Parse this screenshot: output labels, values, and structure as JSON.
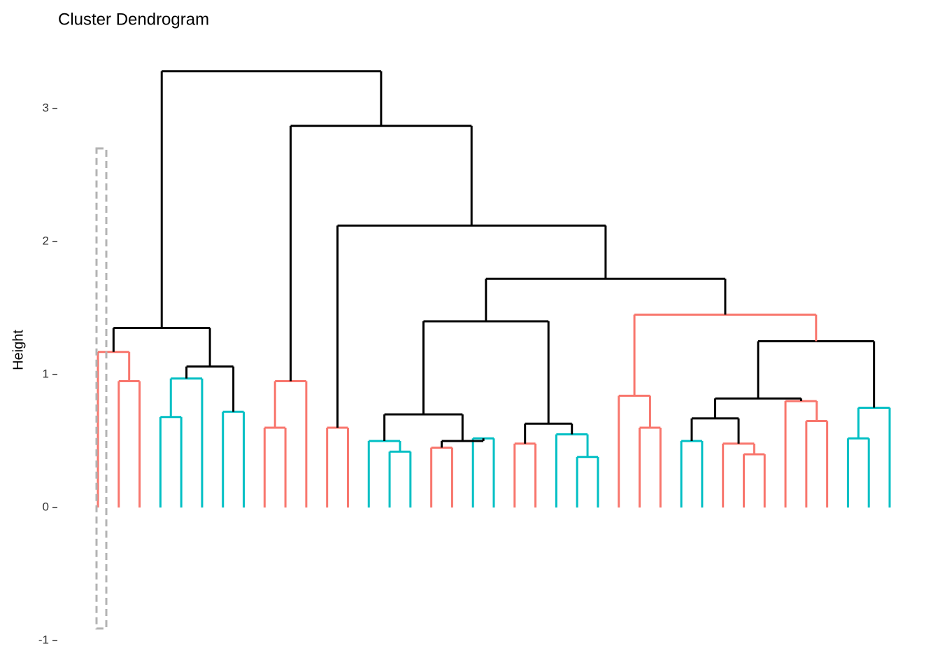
{
  "chart_data": {
    "type": "dendrogram",
    "title": "Cluster Dendrogram",
    "y_label": "Height",
    "ylim": [
      -1,
      3.3
    ],
    "yticks": [
      -1,
      0,
      1,
      2,
      3
    ],
    "rect": {
      "ymin": -0.91,
      "ymax": 2.7,
      "color": "#b3b3b3"
    },
    "tree": {
      "height": 3.28,
      "color": "#000000",
      "children": [
        {
          "height": 1.35,
          "color": "#000000",
          "children": [
            {
              "height": 1.17,
              "color": "#F8766D",
              "children": [
                {
                  "height": 0
                },
                {
                  "height": 0.95,
                  "color": "#F8766D",
                  "children": [
                    {
                      "height": 0
                    },
                    {
                      "height": 0
                    }
                  ]
                }
              ]
            },
            {
              "height": 1.06,
              "color": "#000000",
              "children": [
                {
                  "height": 0.97,
                  "color": "#00BFC4",
                  "children": [
                    {
                      "height": 0.68,
                      "color": "#00BFC4",
                      "children": [
                        {
                          "height": 0
                        },
                        {
                          "height": 0
                        }
                      ]
                    },
                    {
                      "height": 0
                    }
                  ]
                },
                {
                  "height": 0.72,
                  "color": "#00BFC4",
                  "children": [
                    {
                      "height": 0
                    },
                    {
                      "height": 0
                    }
                  ]
                }
              ]
            }
          ]
        },
        {
          "height": 2.87,
          "color": "#000000",
          "children": [
            {
              "height": 0.95,
              "color": "#F8766D",
              "children": [
                {
                  "height": 0.6,
                  "color": "#F8766D",
                  "children": [
                    {
                      "height": 0
                    },
                    {
                      "height": 0
                    }
                  ]
                },
                {
                  "height": 0
                }
              ]
            },
            {
              "height": 2.12,
              "color": "#000000",
              "children": [
                {
                  "height": 0.6,
                  "color": "#F8766D",
                  "children": [
                    {
                      "height": 0
                    },
                    {
                      "height": 0
                    }
                  ]
                },
                {
                  "height": 1.72,
                  "color": "#000000",
                  "children": [
                    {
                      "height": 1.4,
                      "color": "#000000",
                      "children": [
                        {
                          "height": 0.7,
                          "color": "#000000",
                          "children": [
                            {
                              "height": 0.5,
                              "color": "#00BFC4",
                              "children": [
                                {
                                  "height": 0
                                },
                                {
                                  "height": 0.42,
                                  "color": "#00BFC4",
                                  "children": [
                                    {
                                      "height": 0
                                    },
                                    {
                                      "height": 0
                                    }
                                  ]
                                }
                              ]
                            },
                            {
                              "height": 0.5,
                              "color": "#000000",
                              "children": [
                                {
                                  "height": 0.45,
                                  "color": "#F8766D",
                                  "children": [
                                    {
                                      "height": 0
                                    },
                                    {
                                      "height": 0
                                    }
                                  ]
                                },
                                {
                                  "height": 0.52,
                                  "color": "#00BFC4",
                                  "children": [
                                    {
                                      "height": 0
                                    },
                                    {
                                      "height": 0
                                    }
                                  ]
                                }
                              ]
                            }
                          ]
                        },
                        {
                          "height": 0.63,
                          "color": "#000000",
                          "children": [
                            {
                              "height": 0.48,
                              "color": "#F8766D",
                              "children": [
                                {
                                  "height": 0
                                },
                                {
                                  "height": 0
                                }
                              ]
                            },
                            {
                              "height": 0.55,
                              "color": "#00BFC4",
                              "children": [
                                {
                                  "height": 0
                                },
                                {
                                  "height": 0.38,
                                  "color": "#00BFC4",
                                  "children": [
                                    {
                                      "height": 0
                                    },
                                    {
                                      "height": 0
                                    }
                                  ]
                                }
                              ]
                            }
                          ]
                        }
                      ]
                    },
                    {
                      "height": 1.45,
                      "color": "#F8766D",
                      "children": [
                        {
                          "height": 0.84,
                          "color": "#F8766D",
                          "children": [
                            {
                              "height": 0
                            },
                            {
                              "height": 0.6,
                              "color": "#F8766D",
                              "children": [
                                {
                                  "height": 0
                                },
                                {
                                  "height": 0
                                }
                              ]
                            }
                          ]
                        },
                        {
                          "height": 1.25,
                          "color": "#000000",
                          "children": [
                            {
                              "height": 0.82,
                              "color": "#000000",
                              "children": [
                                {
                                  "height": 0.67,
                                  "color": "#000000",
                                  "children": [
                                    {
                                      "height": 0.5,
                                      "color": "#00BFC4",
                                      "children": [
                                        {
                                          "height": 0
                                        },
                                        {
                                          "height": 0
                                        }
                                      ]
                                    },
                                    {
                                      "height": 0.48,
                                      "color": "#F8766D",
                                      "children": [
                                        {
                                          "height": 0
                                        },
                                        {
                                          "height": 0.4,
                                          "color": "#F8766D",
                                          "children": [
                                            {
                                              "height": 0
                                            },
                                            {
                                              "height": 0
                                            }
                                          ]
                                        }
                                      ]
                                    }
                                  ]
                                },
                                {
                                  "height": 0.8,
                                  "color": "#F8766D",
                                  "children": [
                                    {
                                      "height": 0
                                    },
                                    {
                                      "height": 0.65,
                                      "color": "#F8766D",
                                      "children": [
                                        {
                                          "height": 0
                                        },
                                        {
                                          "height": 0
                                        }
                                      ]
                                    }
                                  ]
                                }
                              ]
                            },
                            {
                              "height": 0.75,
                              "color": "#00BFC4",
                              "children": [
                                {
                                  "height": 0.52,
                                  "color": "#00BFC4",
                                  "children": [
                                    {
                                      "height": 0
                                    },
                                    {
                                      "height": 0
                                    }
                                  ]
                                },
                                {
                                  "height": 0
                                }
                              ]
                            }
                          ]
                        }
                      ]
                    }
                  ]
                }
              ]
            }
          ]
        }
      ]
    }
  }
}
